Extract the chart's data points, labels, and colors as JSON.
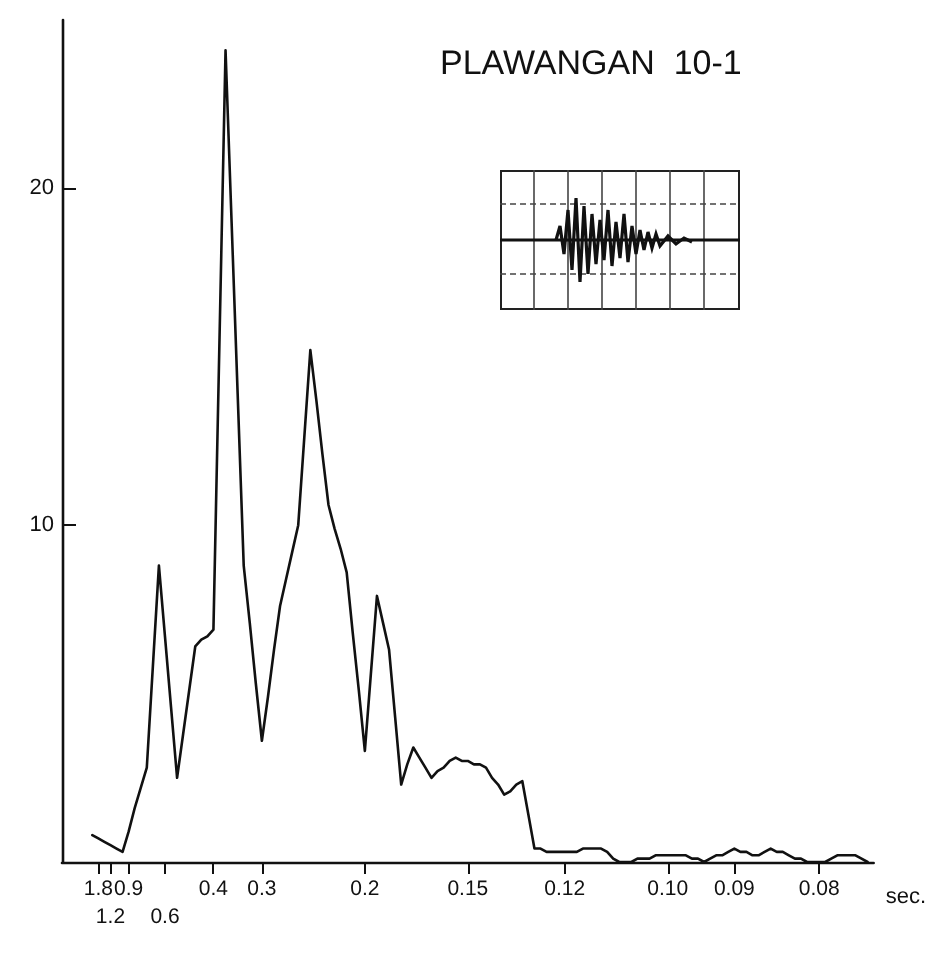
{
  "chart_data": {
    "type": "line",
    "title": "PLAWANGAN  10-1",
    "xlabel": "sec.",
    "categories": [
      null,
      null,
      null,
      null,
      null,
      null,
      "1.8",
      null,
      "1.2",
      null,
      null,
      "0.9",
      null,
      null,
      null,
      null,
      null,
      "0.6",
      null,
      null,
      null,
      null,
      null,
      null,
      null,
      "0.4",
      null,
      null,
      null,
      null,
      null,
      null,
      null,
      "0.3",
      null,
      null,
      null,
      null,
      null,
      null,
      null,
      null,
      null,
      null,
      null,
      null,
      null,
      null,
      null,
      null,
      "0.2",
      null,
      null,
      null,
      null,
      null,
      null,
      null,
      null,
      null,
      null,
      null,
      null,
      null,
      null,
      null,
      null,
      "0.15",
      null,
      null,
      null,
      null,
      null,
      null,
      null,
      null,
      null,
      null,
      null,
      null,
      null,
      null,
      null,
      "0.12",
      null,
      null,
      null,
      null,
      null,
      null,
      null,
      null,
      null,
      null,
      null,
      null,
      null,
      null,
      null,
      null,
      "0.10",
      null,
      null,
      null,
      null,
      null,
      null,
      null,
      null,
      null,
      null,
      "0.09",
      null,
      null,
      null,
      null,
      null,
      null,
      null,
      null,
      null,
      null,
      null,
      null,
      null,
      "0.08",
      null,
      null,
      null,
      null,
      null,
      null,
      null,
      null,
      null
    ],
    "series": [
      {
        "color": "#111111",
        "values": [
          null,
          null,
          null,
          null,
          null,
          0.8,
          0.7,
          0.6,
          0.5,
          0.4,
          0.3,
          0.9,
          1.6,
          2.2,
          2.8,
          5.8,
          8.8,
          6.7,
          4.6,
          2.5,
          3.8,
          5.1,
          6.4,
          6.6,
          6.7,
          6.9,
          15.5,
          24.1,
          19.0,
          13.9,
          8.8,
          7.1,
          5.3,
          3.6,
          4.9,
          6.3,
          7.6,
          8.4,
          9.2,
          10.0,
          12.6,
          15.2,
          13.7,
          12.1,
          10.6,
          9.9,
          9.3,
          8.6,
          6.8,
          5.1,
          3.3,
          5.6,
          7.9,
          7.1,
          6.3,
          4.3,
          2.3,
          2.9,
          3.4,
          3.1,
          2.8,
          2.5,
          2.7,
          2.8,
          3.0,
          3.1,
          3.0,
          3.0,
          2.9,
          2.9,
          2.8,
          2.5,
          2.3,
          2.0,
          2.1,
          2.3,
          2.4,
          1.4,
          0.4,
          0.4,
          0.3,
          0.3,
          0.3,
          0.3,
          0.3,
          0.3,
          0.4,
          0.4,
          0.4,
          0.4,
          0.3,
          0.1,
          0,
          0,
          0,
          0.1,
          0.1,
          0.1,
          0.2,
          0.2,
          0.2,
          0.2,
          0.2,
          0.2,
          0.1,
          0.1,
          0,
          0.1,
          0.2,
          0.2,
          0.3,
          0.4,
          0.3,
          0.3,
          0.2,
          0.2,
          0.3,
          0.4,
          0.3,
          0.3,
          0.2,
          0.1,
          0.1,
          0,
          0,
          0,
          0,
          0.1,
          0.2,
          0.2,
          0.2,
          0.2,
          0.1,
          0,
          null
        ]
      }
    ],
    "ylim": [
      0,
      25
    ],
    "yticks": [
      10,
      20
    ],
    "line_style": "solid"
  }
}
